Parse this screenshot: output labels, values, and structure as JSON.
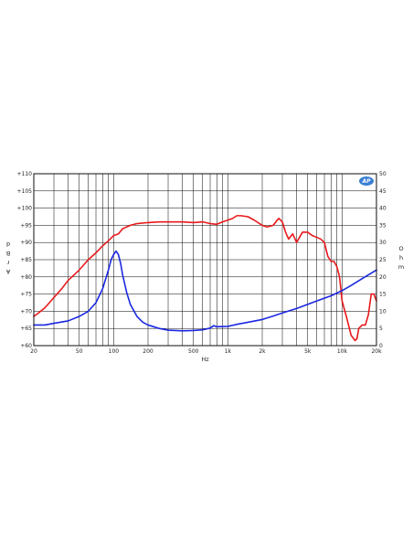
{
  "chart_data": {
    "type": "line",
    "title": "",
    "xlabel": "Hz",
    "ylabel_left": "dBr A",
    "ylabel_left_letters": [
      "d",
      "B",
      "r",
      "A"
    ],
    "ylabel_right": "Ohm",
    "ylabel_right_letters": [
      "O",
      "h",
      "m"
    ],
    "x_scale": "log",
    "xlim": [
      20,
      20000
    ],
    "ylim_left": [
      60,
      110
    ],
    "ylim_right": [
      0,
      50
    ],
    "grid": true,
    "logo": "AP",
    "x_ticks": [
      {
        "value": 20,
        "label": "20"
      },
      {
        "value": 50,
        "label": "50"
      },
      {
        "value": 100,
        "label": "100"
      },
      {
        "value": 200,
        "label": "200"
      },
      {
        "value": 500,
        "label": "500"
      },
      {
        "value": 1000,
        "label": "1k"
      },
      {
        "value": 2000,
        "label": "2k"
      },
      {
        "value": 5000,
        "label": "5k"
      },
      {
        "value": 10000,
        "label": "10k"
      },
      {
        "value": 20000,
        "label": "20k"
      }
    ],
    "y_ticks_left": [
      {
        "value": 110,
        "label": "+110"
      },
      {
        "value": 105,
        "label": "+105"
      },
      {
        "value": 100,
        "label": "+100"
      },
      {
        "value": 95,
        "label": "+95"
      },
      {
        "value": 90,
        "label": "+90"
      },
      {
        "value": 85,
        "label": "+85"
      },
      {
        "value": 80,
        "label": "+80"
      },
      {
        "value": 75,
        "label": "+75"
      },
      {
        "value": 70,
        "label": "+70"
      },
      {
        "value": 65,
        "label": "+65"
      },
      {
        "value": 60,
        "label": "+60"
      }
    ],
    "y_ticks_right": [
      {
        "value": 50,
        "label": "50"
      },
      {
        "value": 45,
        "label": "45"
      },
      {
        "value": 40,
        "label": "40"
      },
      {
        "value": 35,
        "label": "35"
      },
      {
        "value": 30,
        "label": "30"
      },
      {
        "value": 25,
        "label": "25"
      },
      {
        "value": 20,
        "label": "20"
      },
      {
        "value": 15,
        "label": "15"
      },
      {
        "value": 10,
        "label": "10"
      },
      {
        "value": 5,
        "label": "5"
      },
      {
        "value": 0,
        "label": "0"
      }
    ],
    "series": [
      {
        "axis": "left",
        "color": "#e8191c",
        "points": [
          [
            20,
            68.5
          ],
          [
            22,
            69.5
          ],
          [
            25,
            71
          ],
          [
            30,
            74
          ],
          [
            35,
            76.5
          ],
          [
            40,
            79
          ],
          [
            50,
            82
          ],
          [
            60,
            85
          ],
          [
            70,
            87
          ],
          [
            80,
            89
          ],
          [
            90,
            90.5
          ],
          [
            100,
            92
          ],
          [
            110,
            92.5
          ],
          [
            120,
            94
          ],
          [
            140,
            95
          ],
          [
            160,
            95.5
          ],
          [
            200,
            95.8
          ],
          [
            250,
            96
          ],
          [
            300,
            96
          ],
          [
            400,
            96
          ],
          [
            500,
            95.8
          ],
          [
            600,
            96
          ],
          [
            700,
            95.5
          ],
          [
            800,
            95.3
          ],
          [
            900,
            96
          ],
          [
            1000,
            96.5
          ],
          [
            1100,
            97
          ],
          [
            1200,
            97.8
          ],
          [
            1300,
            97.8
          ],
          [
            1500,
            97.5
          ],
          [
            1700,
            96.5
          ],
          [
            2000,
            95
          ],
          [
            2200,
            94.5
          ],
          [
            2500,
            95
          ],
          [
            2700,
            96.5
          ],
          [
            2800,
            97
          ],
          [
            3000,
            96
          ],
          [
            3200,
            93
          ],
          [
            3400,
            91
          ],
          [
            3700,
            92.5
          ],
          [
            4000,
            90
          ],
          [
            4500,
            93
          ],
          [
            5000,
            93
          ],
          [
            5500,
            92
          ],
          [
            6000,
            91.5
          ],
          [
            6500,
            91
          ],
          [
            7000,
            90
          ],
          [
            7500,
            86
          ],
          [
            8000,
            84.5
          ],
          [
            8500,
            84.5
          ],
          [
            9000,
            83
          ],
          [
            9500,
            80
          ],
          [
            10000,
            73
          ],
          [
            11000,
            68
          ],
          [
            12000,
            63
          ],
          [
            13000,
            61.5
          ],
          [
            13500,
            62
          ],
          [
            14000,
            65
          ],
          [
            15000,
            66
          ],
          [
            16000,
            66
          ],
          [
            17000,
            69
          ],
          [
            18000,
            75
          ],
          [
            19000,
            75
          ],
          [
            20000,
            73
          ]
        ]
      },
      {
        "axis": "right",
        "color": "#1a28e0",
        "points": [
          [
            20,
            6
          ],
          [
            25,
            6
          ],
          [
            30,
            6.5
          ],
          [
            40,
            7.2
          ],
          [
            50,
            8.5
          ],
          [
            60,
            10
          ],
          [
            70,
            12.5
          ],
          [
            80,
            16.5
          ],
          [
            90,
            22
          ],
          [
            95,
            25
          ],
          [
            100,
            26.5
          ],
          [
            105,
            27.5
          ],
          [
            110,
            26.5
          ],
          [
            115,
            24
          ],
          [
            120,
            20.5
          ],
          [
            130,
            15.5
          ],
          [
            140,
            12
          ],
          [
            160,
            8.5
          ],
          [
            180,
            6.8
          ],
          [
            200,
            6
          ],
          [
            250,
            5
          ],
          [
            300,
            4.5
          ],
          [
            400,
            4.3
          ],
          [
            500,
            4.4
          ],
          [
            600,
            4.6
          ],
          [
            700,
            5.1
          ],
          [
            750,
            5.8
          ],
          [
            800,
            5.5
          ],
          [
            1000,
            5.6
          ],
          [
            1200,
            6.2
          ],
          [
            1500,
            6.8
          ],
          [
            2000,
            7.6
          ],
          [
            2500,
            8.6
          ],
          [
            3000,
            9.5
          ],
          [
            4000,
            10.8
          ],
          [
            5000,
            12
          ],
          [
            6000,
            13
          ],
          [
            8000,
            14.5
          ],
          [
            10000,
            16
          ],
          [
            12000,
            17.5
          ],
          [
            15000,
            19.5
          ],
          [
            20000,
            22
          ]
        ]
      }
    ]
  }
}
